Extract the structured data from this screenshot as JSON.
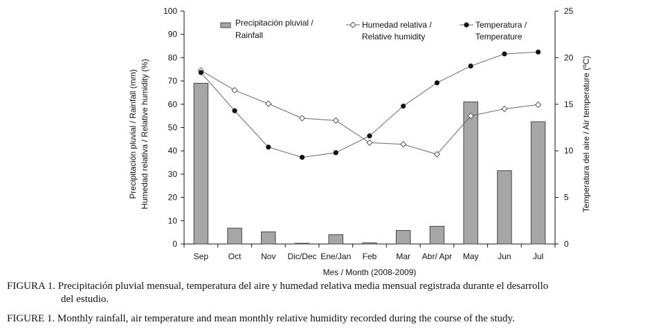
{
  "chart_data": {
    "type": "bar+line",
    "categories": [
      "Sep",
      "Oct",
      "Nov",
      "Dic/Dec",
      "Ene/Jan",
      "Feb",
      "Mar",
      "Abr/ Apr",
      "May",
      "Jun",
      "Jul"
    ],
    "series": [
      {
        "name": "Precipitación pluvial / Rainfall",
        "type": "bar",
        "axis": "left",
        "values": [
          69,
          6.8,
          5.2,
          0.3,
          4.0,
          0.5,
          5.8,
          7.6,
          61,
          31.5,
          52.5
        ]
      },
      {
        "name": "Humedad relativa / Relative humidity",
        "type": "line",
        "marker": "open-diamond",
        "axis": "left",
        "values": [
          74.5,
          66,
          60.2,
          54,
          53,
          43.5,
          42.8,
          38.5,
          55,
          58,
          59.8
        ]
      },
      {
        "name": "Temperatura / Temperature",
        "type": "line",
        "marker": "filled-circle",
        "axis": "right",
        "values": [
          18.4,
          14.3,
          10.4,
          9.3,
          9.8,
          11.6,
          14.8,
          17.3,
          19.1,
          20.4,
          20.6
        ]
      }
    ],
    "left_axis": {
      "label_line1": "Precipitación pluvial / Rainfall (mm)",
      "label_line2": "Humedad relativa / Relative humidity (%)",
      "ylim": [
        0,
        100
      ],
      "ticks": [
        0,
        10,
        20,
        30,
        40,
        50,
        60,
        70,
        80,
        90,
        100
      ]
    },
    "right_axis": {
      "label": "Temperatura del aire / Air temperature (ºC)",
      "ylim": [
        0,
        25
      ],
      "ticks": [
        0,
        5,
        10,
        15,
        20,
        25
      ]
    },
    "xlabel": "Mes / Month (2008-2009)",
    "legend": [
      {
        "line1": "Precipitación pluvial /",
        "line2": "Rainfall"
      },
      {
        "line1": "Humedad relativa /",
        "line2": "Relative humidity"
      },
      {
        "line1": "Temperatura /",
        "line2": "Temperature"
      }
    ],
    "legend_position": "top"
  },
  "captions": {
    "es_label": "FIGURA 1.",
    "es_text_line1": "Precipitación pluvial mensual, temperatura del aire y humedad relativa media mensual registrada durante el desarrollo",
    "es_text_line2": "del estudio.",
    "en_label": "FIGURE 1.",
    "en_text": "Monthly rainfall, air temperature and mean monthly relative humidity recorded during the course of the study."
  },
  "colors": {
    "bar_fill": "#a6a6a6",
    "bar_stroke": "#444444",
    "line": "#666666",
    "axis": "#111111"
  }
}
